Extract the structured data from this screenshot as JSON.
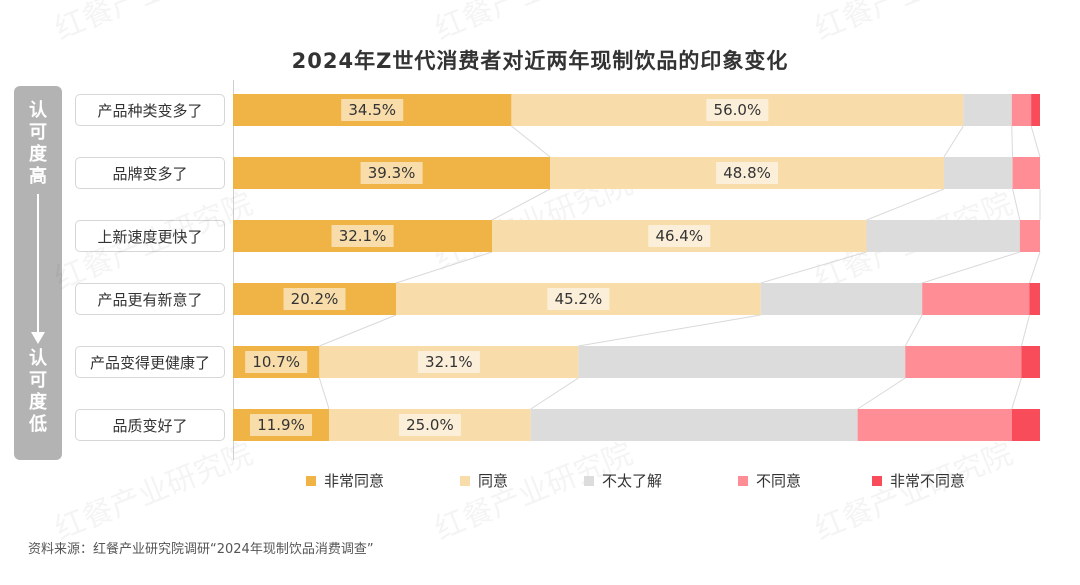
{
  "title": "2024年Z世代消费者对近两年现制饮品的印象变化",
  "side_axis": {
    "top_label": "认可度高",
    "bottom_label": "认可度低"
  },
  "source": "资料来源：红餐产业研究院调研“2024年现制饮品消费调查”",
  "watermark": "红餐产业研究院",
  "chart_data": {
    "type": "bar",
    "stacked": true,
    "orientation": "horizontal",
    "normalized_percent": true,
    "title": "2024年Z世代消费者对近两年现制饮品的印象变化",
    "categories": [
      "产品种类变多了",
      "品牌变多了",
      "上新速度更快了",
      "产品更有新意了",
      "产品变得更健康了",
      "品质变好了"
    ],
    "series": [
      {
        "name": "非常同意",
        "color": "#f0b446",
        "values": [
          34.5,
          39.3,
          32.1,
          20.2,
          10.7,
          11.9
        ],
        "labels": [
          "34.5%",
          "39.3%",
          "32.1%",
          "20.2%",
          "10.7%",
          "11.9%"
        ]
      },
      {
        "name": "同意",
        "color": "#f8dcaa",
        "values": [
          56.0,
          48.8,
          46.4,
          45.2,
          32.1,
          25.0
        ],
        "labels": [
          "56.0%",
          "48.8%",
          "46.4%",
          "45.2%",
          "32.1%",
          "25.0%"
        ]
      },
      {
        "name": "不太了解",
        "color": "#dcdcdc",
        "values": [
          6.0,
          8.5,
          19.0,
          20.0,
          40.5,
          40.5
        ]
      },
      {
        "name": "不同意",
        "color": "#ff8d96",
        "values": [
          2.4,
          3.4,
          2.5,
          13.3,
          14.4,
          19.1
        ]
      },
      {
        "name": "非常不同意",
        "color": "#f94c5b",
        "values": [
          1.1,
          0.0,
          0.0,
          1.3,
          2.3,
          3.5
        ]
      }
    ],
    "legend_position": "bottom",
    "xlim": [
      0,
      100
    ],
    "grid": false
  }
}
